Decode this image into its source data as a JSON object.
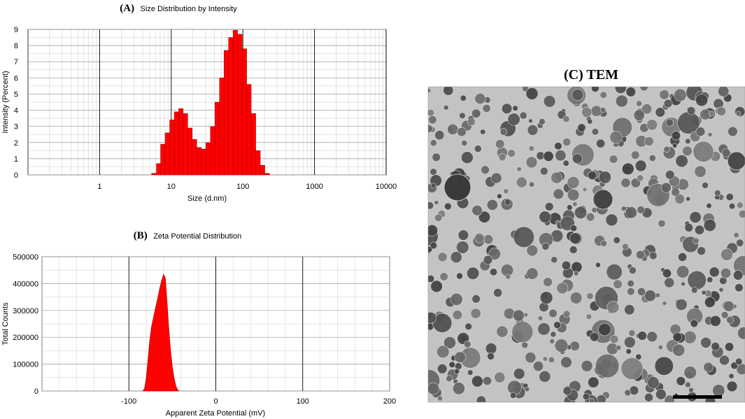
{
  "chart_data": [
    {
      "panel_label": "(A)",
      "title": "Size Distribution by Intensity",
      "type": "bar",
      "xscale": "log",
      "xlabel": "Size (d.nm)",
      "ylabel": "Intensity (Percent)",
      "xlim": [
        0.1,
        10000
      ],
      "ylim": [
        0,
        9
      ],
      "xticks": [
        1,
        10,
        100,
        1000,
        10000
      ],
      "yticks": [
        0,
        1,
        2,
        3,
        4,
        5,
        6,
        7,
        8,
        9
      ],
      "grid": true,
      "color": "#ff0000",
      "bin_edges": [
        5.3,
        6.2,
        7.1,
        8.2,
        9.5,
        11.0,
        12.7,
        14.7,
        17.0,
        19.6,
        22.7,
        26.3,
        30.4,
        35.2,
        40.7,
        47.1,
        54.5,
        63.0,
        72.9,
        84.4,
        97.6,
        113.0,
        130.7,
        151.3,
        175.0,
        202.5,
        234.3
      ],
      "values": [
        0.1,
        0.7,
        1.9,
        2.6,
        3.4,
        3.9,
        4.1,
        3.8,
        2.9,
        2.2,
        1.7,
        1.6,
        2.0,
        3.0,
        4.5,
        6.0,
        7.7,
        8.5,
        8.95,
        8.7,
        7.8,
        5.6,
        3.8,
        1.5,
        0.6,
        0.1
      ]
    },
    {
      "panel_label": "(B)",
      "title": "Zeta Potential Distribution",
      "type": "area",
      "xlabel": "Apparent Zeta Potential (mV)",
      "ylabel": "Total Counts",
      "xlim": [
        -200,
        200
      ],
      "ylim": [
        0,
        500000
      ],
      "xticks": [
        -100,
        0,
        100,
        200
      ],
      "yticks": [
        0,
        100000,
        200000,
        300000,
        400000,
        500000
      ],
      "grid": true,
      "color": "#ff0000",
      "x": [
        -84,
        -82,
        -80,
        -78,
        -76,
        -74,
        -72,
        -70,
        -68,
        -66,
        -64,
        -62,
        -60,
        -58,
        -56,
        -54,
        -52,
        -50,
        -48,
        -46,
        -44,
        -42
      ],
      "values": [
        0,
        10000,
        50000,
        120000,
        190000,
        240000,
        270000,
        300000,
        330000,
        360000,
        390000,
        415000,
        435000,
        420000,
        330000,
        230000,
        150000,
        90000,
        50000,
        20000,
        5000,
        0
      ]
    }
  ],
  "tem": {
    "panel_label": "(C) TEM"
  }
}
